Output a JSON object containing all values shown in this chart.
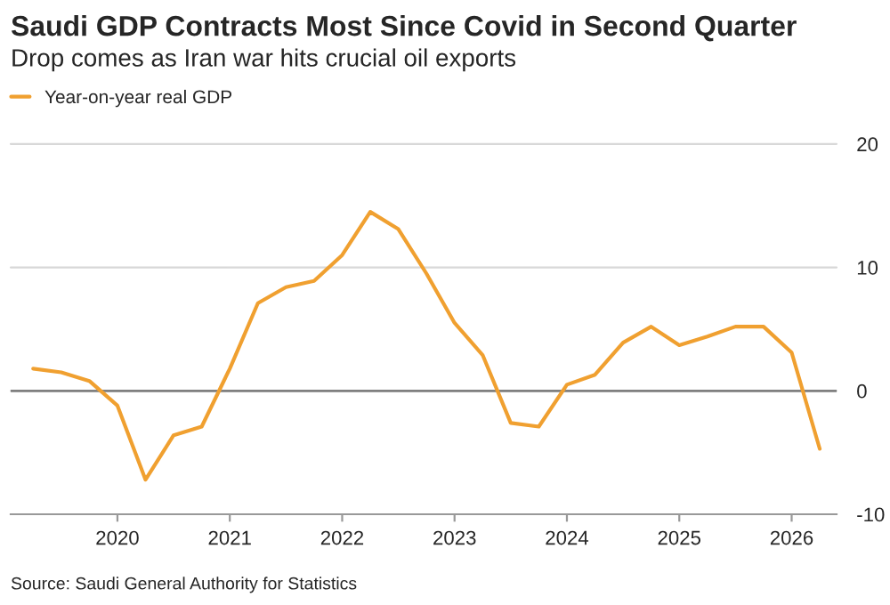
{
  "chart_data": {
    "type": "line",
    "title": "Saudi GDP Contracts Most Since Covid in Second Quarter",
    "subtitle": "Drop comes as Iran war hits crucial oil exports",
    "annotations": [
      "Source: Saudi General Authority for Statistics"
    ],
    "x": [
      2019.25,
      2019.5,
      2019.75,
      2020,
      2020.25,
      2020.5,
      2020.75,
      2021,
      2021.25,
      2021.5,
      2021.75,
      2022,
      2022.25,
      2022.5,
      2022.75,
      2023,
      2023.25,
      2023.5,
      2023.75,
      2024,
      2024.25,
      2024.5,
      2024.75,
      2025,
      2025.25,
      2025.5,
      2025.75,
      2026,
      2026.25
    ],
    "series": [
      {
        "name": "Year-on-year real GDP",
        "color": "#f0a030",
        "values": [
          1.8,
          1.5,
          0.8,
          -1.2,
          -7.2,
          -3.6,
          -2.9,
          1.8,
          7.1,
          8.4,
          8.9,
          11.0,
          14.5,
          13.1,
          9.5,
          5.5,
          2.9,
          -2.6,
          -2.9,
          0.5,
          1.3,
          3.9,
          5.2,
          3.7,
          4.4,
          5.2,
          5.2,
          3.1,
          -4.7
        ]
      }
    ],
    "xlim": [
      2019.05,
      2026.4
    ],
    "xticks": [
      2020,
      2021,
      2022,
      2023,
      2024,
      2025,
      2026
    ],
    "ylim": [
      -10,
      20
    ],
    "yticks": [
      -10,
      0,
      10,
      20
    ],
    "ref_lines": [
      {
        "axis": "y",
        "value": 0,
        "color": "#808080"
      }
    ],
    "grid": "y",
    "legend": "top left",
    "marker": "none",
    "line_style": "solid"
  }
}
